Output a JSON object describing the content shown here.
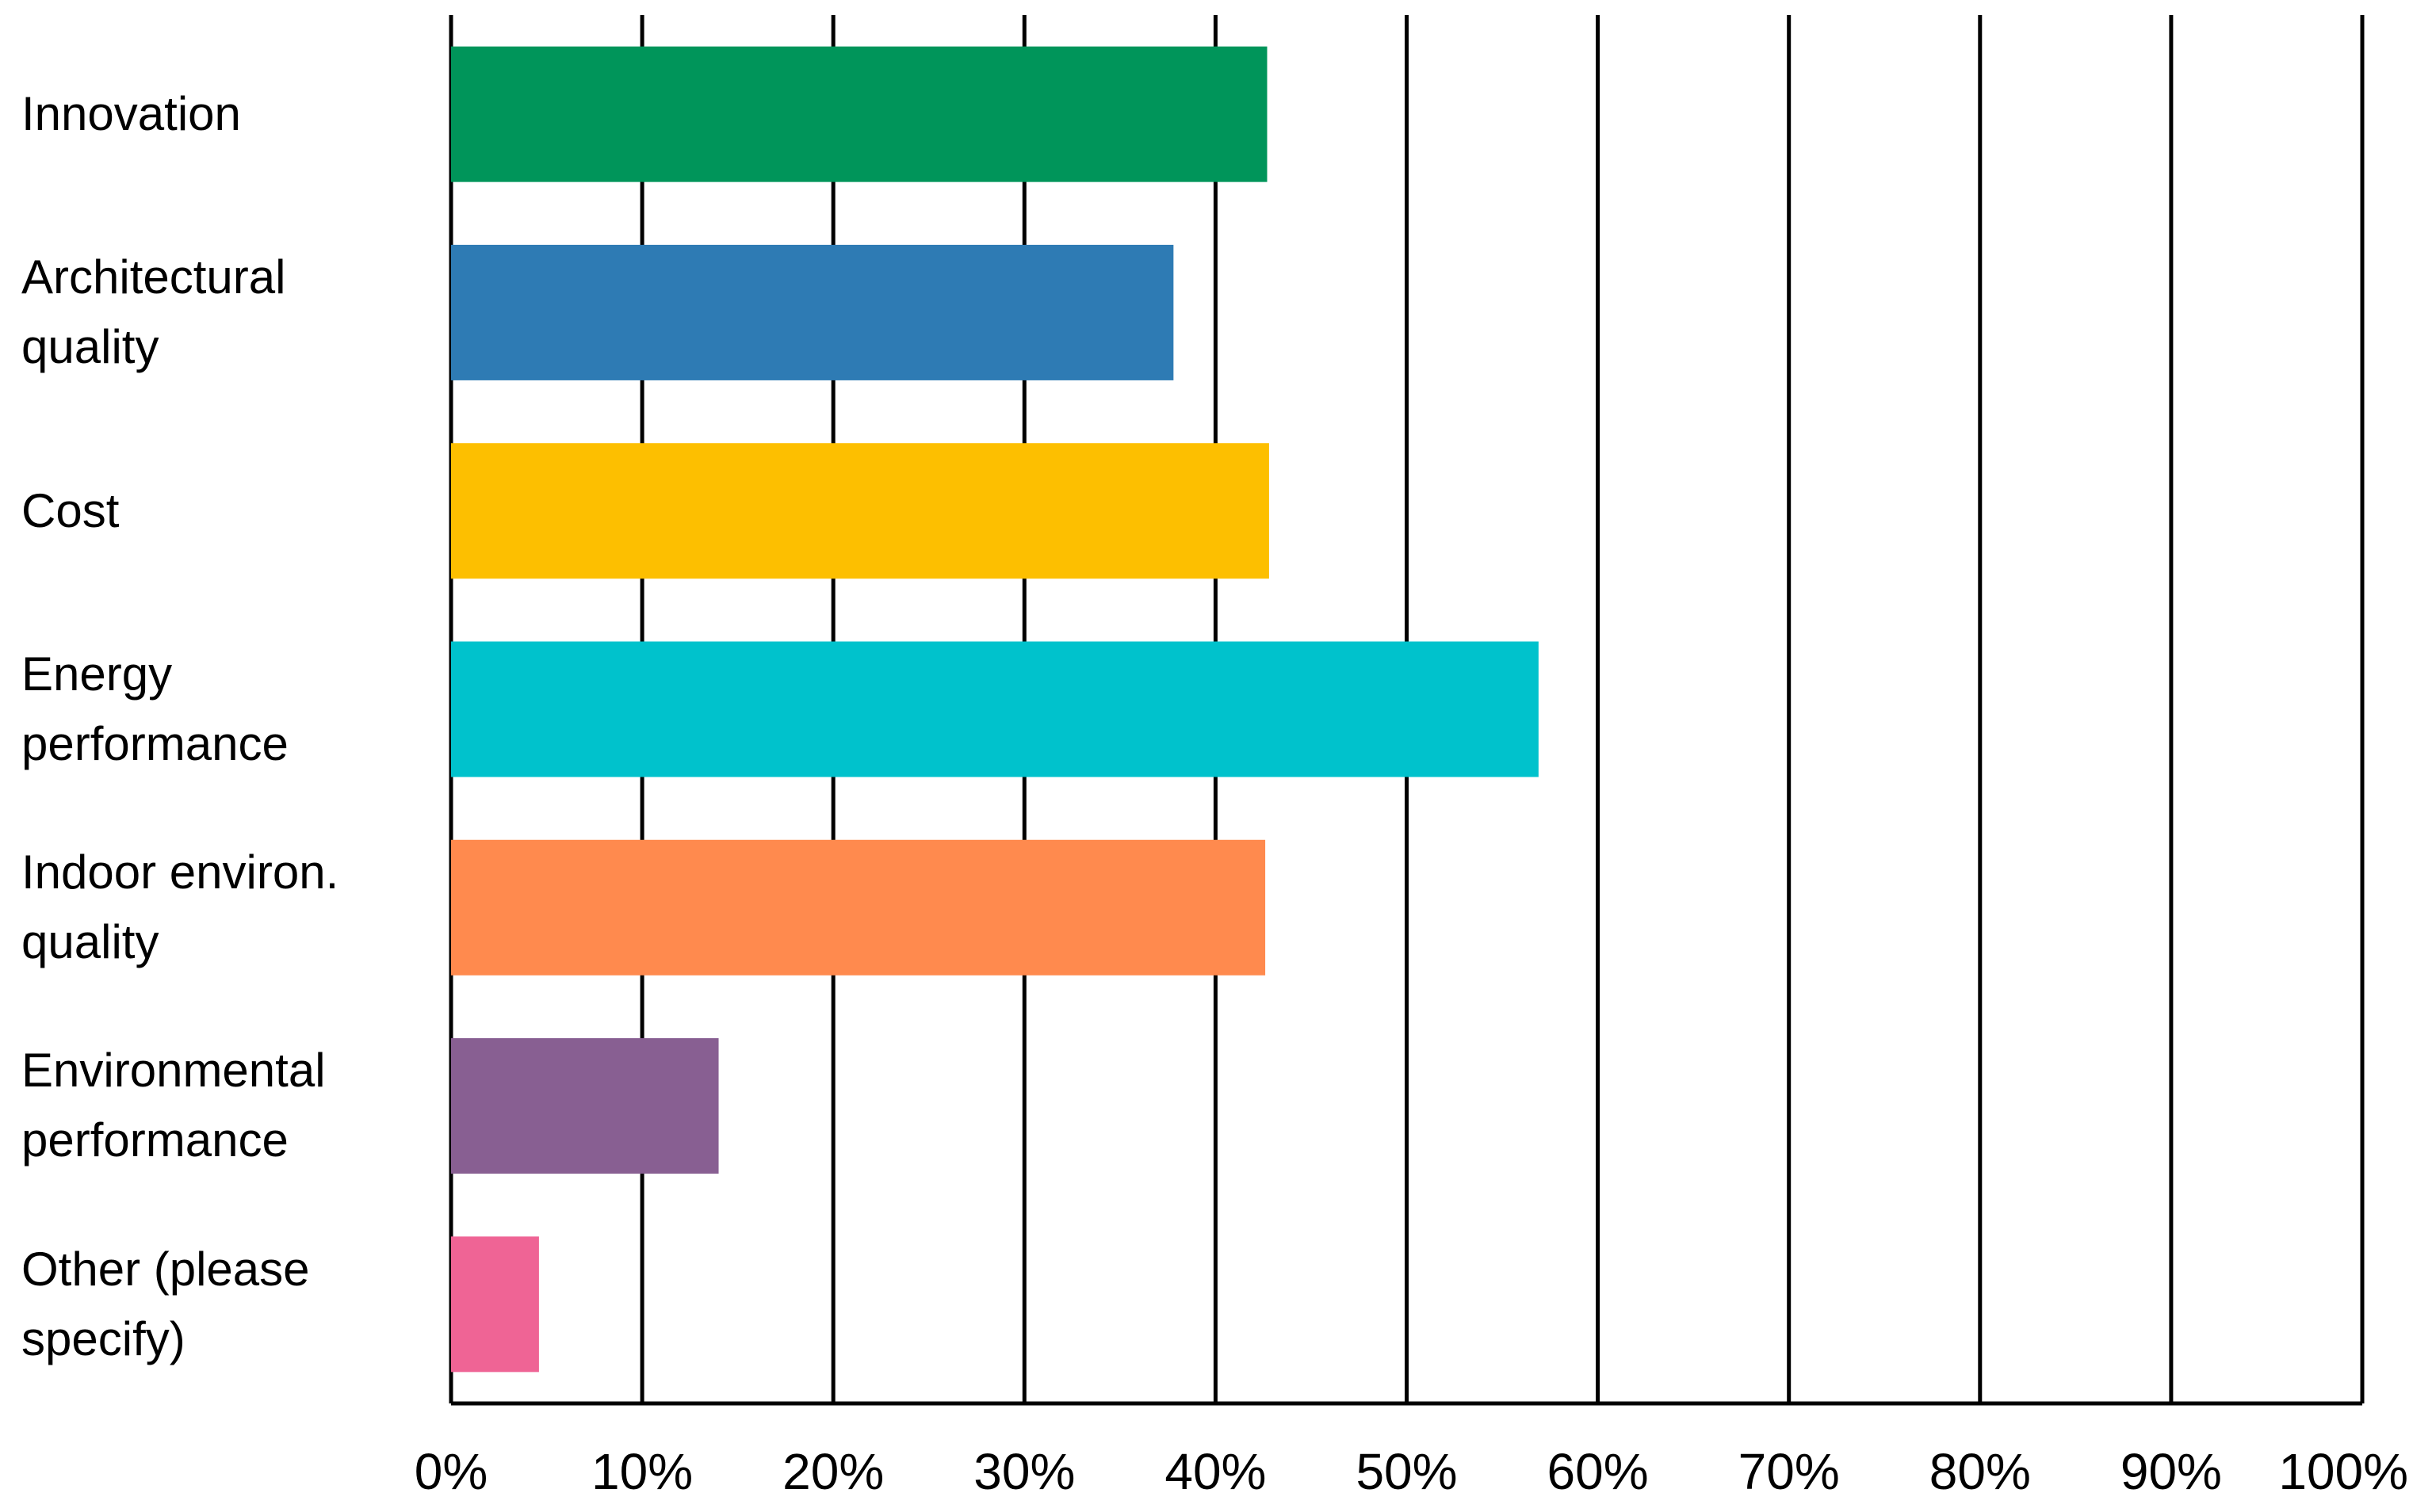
{
  "chart_data": {
    "type": "hbar",
    "categories": [
      "Innovation",
      "Architectural quality",
      "Cost",
      "Energy performance",
      "Indoor environ. quality",
      "Environmental performance",
      "Other (please specify)"
    ],
    "values": [
      42.7,
      37.8,
      42.8,
      56.9,
      42.6,
      14.0,
      4.6
    ],
    "colors": [
      "#00955a",
      "#2e7bb4",
      "#fdbf00",
      "#00c2cc",
      "#ff8a4e",
      "#885f92",
      "#ef6495"
    ],
    "xlim": [
      0,
      100
    ],
    "xticks": [
      {
        "value": 0,
        "label": "0%"
      },
      {
        "value": 10,
        "label": "10%"
      },
      {
        "value": 20,
        "label": "20%"
      },
      {
        "value": 30,
        "label": "30%"
      },
      {
        "value": 40,
        "label": "40%"
      },
      {
        "value": 50,
        "label": "50%"
      },
      {
        "value": 60,
        "label": "60%"
      },
      {
        "value": 70,
        "label": "70%"
      },
      {
        "value": 80,
        "label": "80%"
      },
      {
        "value": 90,
        "label": "90%"
      },
      {
        "value": 100,
        "label": "100%"
      }
    ],
    "grid": true
  }
}
